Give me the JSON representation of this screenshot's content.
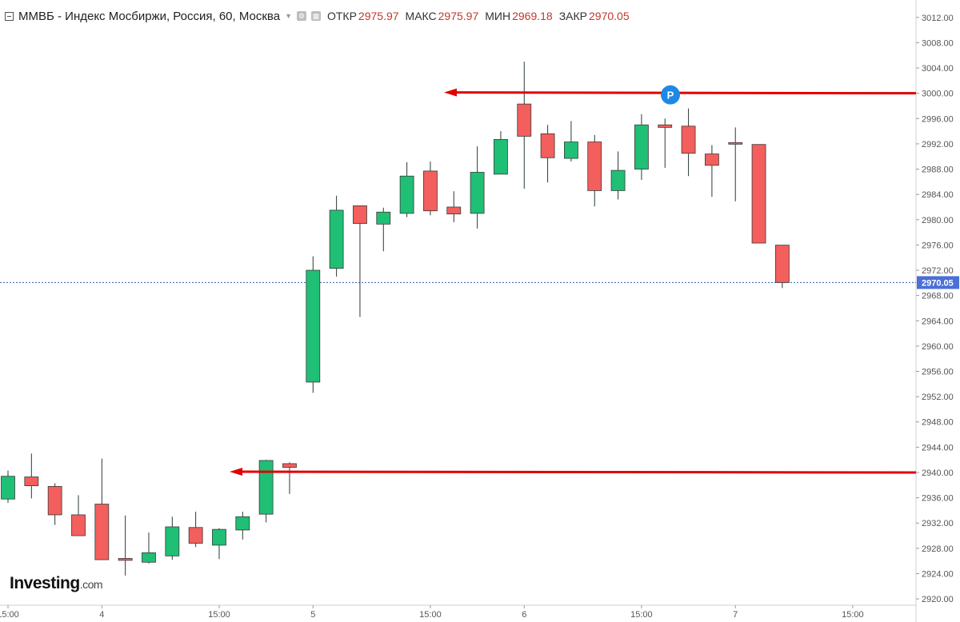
{
  "header": {
    "title": "ММВБ - Индекс Мосбиржи, Россия, 60, Москва",
    "open_label": "ОТКР",
    "open_value": "2975.97",
    "high_label": "МАКС",
    "high_value": "2975.97",
    "low_label": "МИН",
    "low_value": "2969.18",
    "close_label": "ЗАКР",
    "close_value": "2970.05"
  },
  "logo": {
    "brand": "Investing",
    "suffix": ".com"
  },
  "colors": {
    "up": "#1fbf75",
    "down": "#f25f5c",
    "arrow": "#e00000",
    "price_tag": "#4a6fd8",
    "marker": "#1e88e5"
  },
  "chart_data": {
    "type": "candlestick",
    "ylim": [
      2919,
      3014
    ],
    "y_ticks": [
      2920,
      2924,
      2928,
      2932,
      2936,
      2940,
      2944,
      2948,
      2952,
      2956,
      2960,
      2964,
      2968,
      2972,
      2976,
      2980,
      2984,
      2988,
      2992,
      2996,
      3000,
      3004,
      3008,
      3012
    ],
    "x_ticks": [
      {
        "index": 0,
        "label": "15:00"
      },
      {
        "index": 4,
        "label": "4"
      },
      {
        "index": 9,
        "label": "15:00"
      },
      {
        "index": 13,
        "label": "5"
      },
      {
        "index": 18,
        "label": "15:00"
      },
      {
        "index": 22,
        "label": "6"
      },
      {
        "index": 27,
        "label": "15:00"
      },
      {
        "index": 31,
        "label": "7"
      },
      {
        "index": 36,
        "label": "15:00"
      }
    ],
    "candles": [
      {
        "o": 2935.8,
        "h": 2940.3,
        "l": 2935.2,
        "c": 2939.4
      },
      {
        "o": 2939.3,
        "h": 2943.0,
        "l": 2935.9,
        "c": 2937.9
      },
      {
        "o": 2937.8,
        "h": 2938.3,
        "l": 2931.7,
        "c": 2933.3
      },
      {
        "o": 2933.3,
        "h": 2936.4,
        "l": 2930.0,
        "c": 2930.0
      },
      {
        "o": 2935.0,
        "h": 2942.2,
        "l": 2926.2,
        "c": 2926.2
      },
      {
        "o": 2926.4,
        "h": 2933.2,
        "l": 2923.7,
        "c": 2926.1
      },
      {
        "o": 2925.8,
        "h": 2930.5,
        "l": 2925.6,
        "c": 2927.3
      },
      {
        "o": 2926.8,
        "h": 2933.0,
        "l": 2926.2,
        "c": 2931.4
      },
      {
        "o": 2931.3,
        "h": 2933.8,
        "l": 2928.2,
        "c": 2928.8
      },
      {
        "o": 2928.5,
        "h": 2931.2,
        "l": 2926.3,
        "c": 2931.0
      },
      {
        "o": 2930.9,
        "h": 2933.8,
        "l": 2929.4,
        "c": 2933.0
      },
      {
        "o": 2933.4,
        "h": 2942.0,
        "l": 2932.1,
        "c": 2941.9
      },
      {
        "o": 2941.4,
        "h": 2941.6,
        "l": 2936.6,
        "c": 2940.8
      },
      {
        "o": 2954.3,
        "h": 2974.2,
        "l": 2952.6,
        "c": 2972.0
      },
      {
        "o": 2972.3,
        "h": 2983.8,
        "l": 2971.0,
        "c": 2981.5
      },
      {
        "o": 2982.2,
        "h": 2982.2,
        "l": 2964.6,
        "c": 2979.4
      },
      {
        "o": 2979.3,
        "h": 2981.9,
        "l": 2975.0,
        "c": 2981.2
      },
      {
        "o": 2981.0,
        "h": 2989.1,
        "l": 2980.4,
        "c": 2986.9
      },
      {
        "o": 2987.7,
        "h": 2989.2,
        "l": 2980.7,
        "c": 2981.4
      },
      {
        "o": 2982.0,
        "h": 2984.5,
        "l": 2979.6,
        "c": 2980.9
      },
      {
        "o": 2981.0,
        "h": 2991.6,
        "l": 2978.6,
        "c": 2987.5
      },
      {
        "o": 2987.2,
        "h": 2994.0,
        "l": 2987.2,
        "c": 2992.7
      },
      {
        "o": 2998.3,
        "h": 3005.0,
        "l": 2984.9,
        "c": 2993.2
      },
      {
        "o": 2993.6,
        "h": 2995.0,
        "l": 2985.9,
        "c": 2989.8
      },
      {
        "o": 2989.7,
        "h": 2995.6,
        "l": 2989.2,
        "c": 2992.3
      },
      {
        "o": 2992.3,
        "h": 2993.4,
        "l": 2982.1,
        "c": 2984.6
      },
      {
        "o": 2984.6,
        "h": 2990.8,
        "l": 2983.2,
        "c": 2987.8
      },
      {
        "o": 2988.0,
        "h": 2996.7,
        "l": 2986.3,
        "c": 2995.0
      },
      {
        "o": 2995.0,
        "h": 2996.0,
        "l": 2988.2,
        "c": 2994.6
      },
      {
        "o": 2994.8,
        "h": 2997.6,
        "l": 2986.9,
        "c": 2990.5
      },
      {
        "o": 2990.4,
        "h": 2991.8,
        "l": 2983.6,
        "c": 2988.6
      },
      {
        "o": 2992.2,
        "h": 2994.6,
        "l": 2982.9,
        "c": 2992.0
      },
      {
        "o": 2991.9,
        "h": 2991.9,
        "l": 2976.3,
        "c": 2976.3
      },
      {
        "o": 2975.97,
        "h": 2975.97,
        "l": 2969.18,
        "c": 2970.05
      }
    ],
    "last_price": 2970.05,
    "last_price_label": "2970.05",
    "resistance": 3000,
    "support": 2940,
    "marker_glyph": "P"
  }
}
